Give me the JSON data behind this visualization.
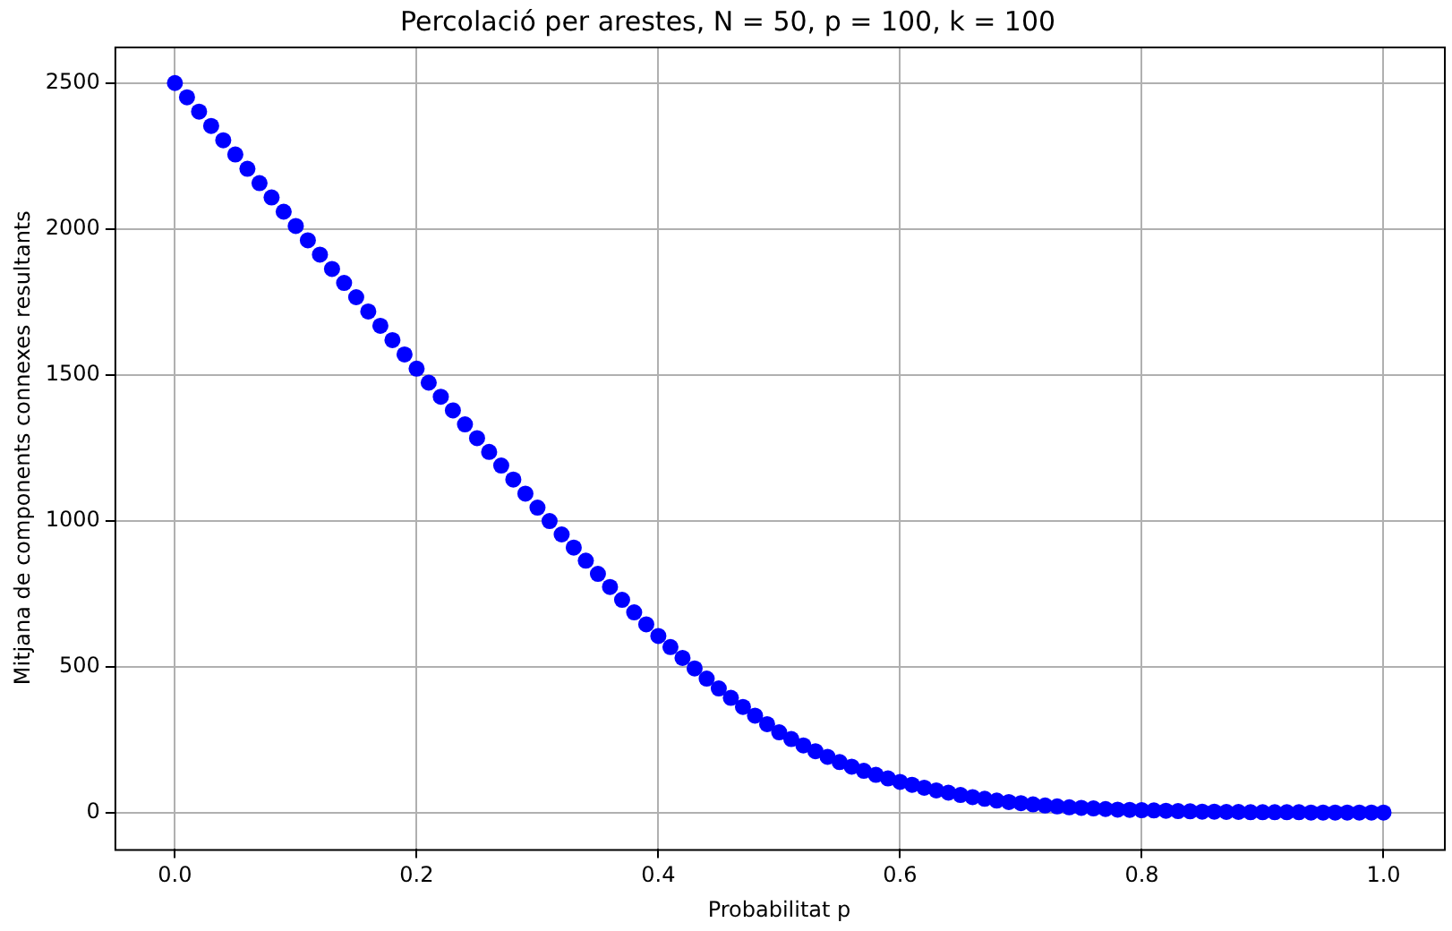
{
  "chart_data": {
    "type": "scatter",
    "title": "Percolació per arestes, N = 50, p = 100, k = 100",
    "xlabel": "Probabilitat p",
    "ylabel": "Mitjana de components connexes resultants",
    "x": [
      0,
      0.01,
      0.02,
      0.03,
      0.04,
      0.05,
      0.06,
      0.07,
      0.08,
      0.09,
      0.1,
      0.11,
      0.12,
      0.13,
      0.14,
      0.15,
      0.16,
      0.17,
      0.18,
      0.19,
      0.2,
      0.21,
      0.22,
      0.23,
      0.24,
      0.25,
      0.26,
      0.27,
      0.28,
      0.29,
      0.3,
      0.31,
      0.32,
      0.33,
      0.34,
      0.35,
      0.36,
      0.37,
      0.38,
      0.39,
      0.4,
      0.41,
      0.42,
      0.43,
      0.44,
      0.45,
      0.46,
      0.47,
      0.48,
      0.49,
      0.5,
      0.51,
      0.52,
      0.53,
      0.54,
      0.55,
      0.56,
      0.57,
      0.58,
      0.59,
      0.6,
      0.61,
      0.62,
      0.63,
      0.64,
      0.65,
      0.66,
      0.67,
      0.68,
      0.69,
      0.7,
      0.71,
      0.72,
      0.73,
      0.74,
      0.75,
      0.76,
      0.77,
      0.78,
      0.79,
      0.8,
      0.81,
      0.82,
      0.83,
      0.84,
      0.85,
      0.86,
      0.87,
      0.88,
      0.89,
      0.9,
      0.91,
      0.92,
      0.93,
      0.94,
      0.95,
      0.96,
      0.97,
      0.98,
      0.99,
      1
    ],
    "series": [
      {
        "color": "#0000ff",
        "values": [
          2500,
          2451,
          2402,
          2353,
          2304,
          2255,
          2206,
          2157,
          2108,
          2059,
          2010,
          1961,
          1912,
          1863,
          1815,
          1766,
          1717,
          1668,
          1619,
          1570,
          1521,
          1473,
          1425,
          1378,
          1330,
          1283,
          1236,
          1189,
          1141,
          1093,
          1045,
          999,
          953,
          908,
          863,
          818,
          773,
          729,
          686,
          645,
          605,
          567,
          530,
          494,
          459,
          425,
          393,
          362,
          332,
          303,
          275,
          252,
          230,
          210,
          191,
          173,
          157,
          143,
          129,
          117,
          105,
          95,
          85,
          76,
          68,
          60,
          53,
          47,
          41,
          36,
          32,
          28,
          24,
          21,
          18,
          16,
          14,
          12,
          10,
          9,
          8,
          7,
          6,
          5,
          4,
          3,
          3,
          2,
          2,
          1,
          1,
          1,
          1,
          1,
          0,
          0,
          0,
          0,
          0,
          0,
          0
        ]
      }
    ],
    "xlim": [
      -0.05,
      1.05
    ],
    "ylim": [
      -125,
      2625
    ],
    "xticks": [
      {
        "value": 0,
        "label": "0.0"
      },
      0.2,
      0.4,
      0.6,
      0.8,
      {
        "value": 1,
        "label": "1.0"
      }
    ],
    "yticks": [
      0,
      500,
      1000,
      1500,
      2000,
      2500
    ],
    "grid": true,
    "marker": "circle"
  }
}
